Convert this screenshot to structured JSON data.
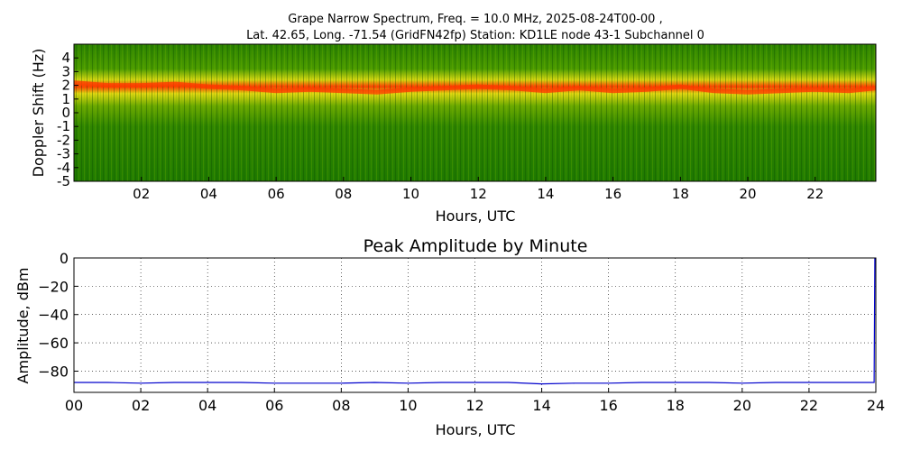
{
  "chart_data": [
    {
      "type": "heatmap",
      "title_line1": "Grape Narrow Spectrum, Freq. = 10.0 MHz, 2025-08-24T00-00 ,",
      "title_line2": "Lat.  42.65, Long. -71.54 (GridFN42fp) Station: KD1LE node 43-1 Subchannel 0",
      "xlabel": "Hours, UTC",
      "ylabel": "Doppler Shift (Hz)",
      "xlim": [
        0,
        23.8
      ],
      "ylim": [
        -5,
        5
      ],
      "x_ticks": [
        "02",
        "04",
        "06",
        "08",
        "10",
        "12",
        "14",
        "16",
        "18",
        "20",
        "22"
      ],
      "x_tick_values": [
        2,
        4,
        6,
        8,
        10,
        12,
        14,
        16,
        18,
        20,
        22
      ],
      "y_ticks": [
        "4",
        "3",
        "2",
        "1",
        "0",
        "-1",
        "-2",
        "-3",
        "-4",
        "-5"
      ],
      "y_tick_values": [
        4,
        3,
        2,
        1,
        0,
        -1,
        -2,
        -3,
        -4,
        -5
      ],
      "colors": {
        "background": "#1f7a00",
        "mid": "#dcdc10",
        "peak": "#ff3a00"
      },
      "ridge": {
        "hours": [
          0,
          1,
          2,
          3,
          4,
          5,
          6,
          7,
          8,
          9,
          10,
          11,
          12,
          13,
          14,
          15,
          16,
          17,
          18,
          19,
          20,
          21,
          22,
          23,
          23.8
        ],
        "doppler_hz": [
          2.2,
          2.0,
          2.0,
          2.1,
          1.9,
          1.8,
          1.6,
          1.7,
          1.6,
          1.5,
          1.7,
          1.8,
          1.9,
          1.8,
          1.6,
          1.8,
          1.6,
          1.7,
          1.9,
          1.6,
          1.5,
          1.6,
          1.7,
          1.6,
          1.8
        ]
      }
    },
    {
      "type": "line",
      "title": "Peak Amplitude by Minute",
      "xlabel": "Hours, UTC",
      "ylabel": "Amplitude, dBm",
      "xlim": [
        0,
        24
      ],
      "ylim": [
        -95,
        0
      ],
      "x_ticks": [
        "00",
        "02",
        "04",
        "06",
        "08",
        "10",
        "12",
        "14",
        "16",
        "18",
        "20",
        "22",
        "24"
      ],
      "x_tick_values": [
        0,
        2,
        4,
        6,
        8,
        10,
        12,
        14,
        16,
        18,
        20,
        22,
        24
      ],
      "y_ticks": [
        "0",
        "−20",
        "−40",
        "−60",
        "−80"
      ],
      "y_tick_values": [
        0,
        -20,
        -40,
        -60,
        -80
      ],
      "grid": true,
      "line_color": "#0000cc",
      "series": [
        {
          "x": [
            0,
            1,
            2,
            3,
            4,
            5,
            6,
            7,
            8,
            9,
            10,
            11,
            12,
            13,
            14,
            15,
            16,
            17,
            18,
            19,
            20,
            21,
            22,
            23,
            23.95,
            23.97
          ],
          "y": [
            -88,
            -88,
            -88.5,
            -88,
            -88,
            -88,
            -88.5,
            -88.5,
            -88.5,
            -88,
            -88.5,
            -88,
            -88,
            -88,
            -89,
            -88.5,
            -88.5,
            -88,
            -88,
            -88,
            -88.5,
            -88,
            -88,
            -88,
            -88,
            0
          ]
        }
      ]
    }
  ]
}
